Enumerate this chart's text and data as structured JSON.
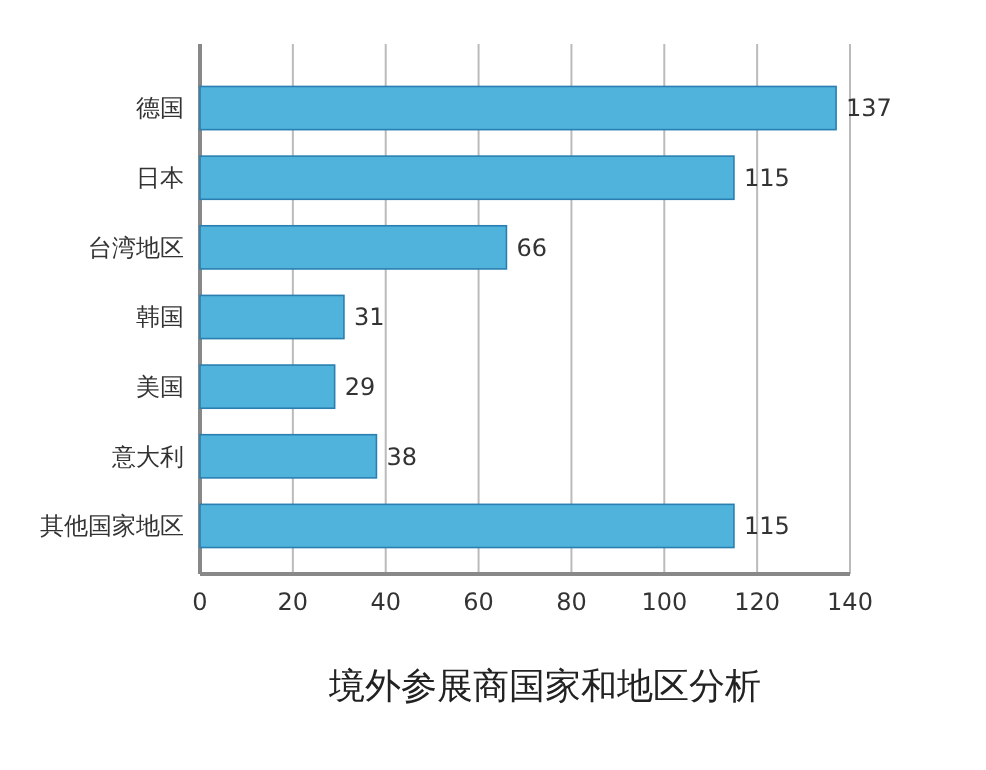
{
  "chart_data": {
    "type": "bar",
    "orientation": "horizontal",
    "title": "境外参展商国家和地区分析",
    "categories": [
      "德国",
      "日本",
      "台湾地区",
      "韩国",
      "美国",
      "意大利",
      "其他国家地区"
    ],
    "values": [
      137,
      115,
      66,
      31,
      29,
      38,
      115
    ],
    "color": "#4fb3dc",
    "xlim": [
      0,
      140
    ],
    "xticks": [
      0,
      20,
      40,
      60,
      80,
      100,
      120,
      140
    ],
    "grid": "x",
    "data_labels": true
  }
}
